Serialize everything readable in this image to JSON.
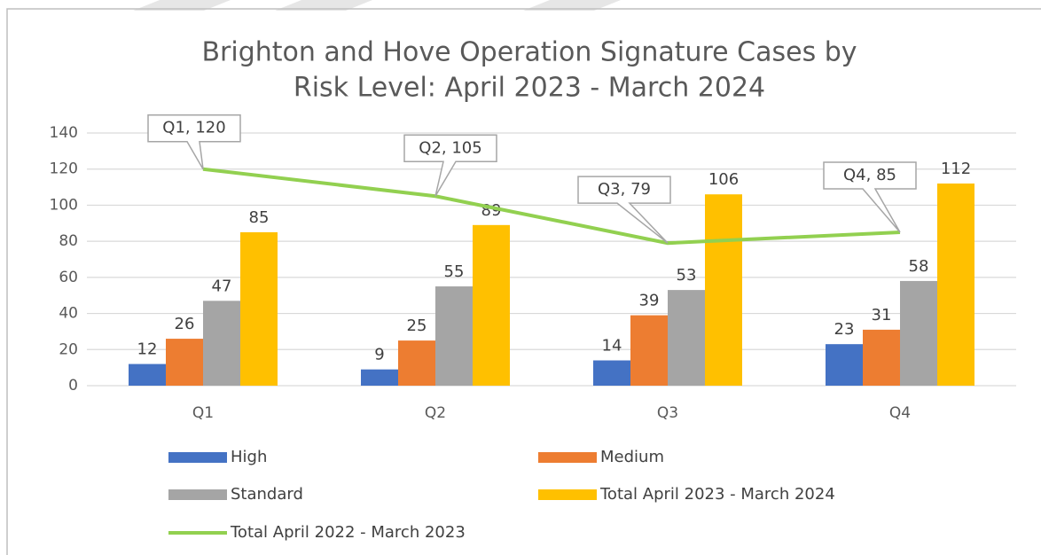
{
  "chart_data": {
    "type": "bar",
    "title": [
      "Brighton and Hove Operation Signature Cases by",
      "Risk Level: April 2023 - March 2024"
    ],
    "categories": [
      "Q1",
      "Q2",
      "Q3",
      "Q4"
    ],
    "series": [
      {
        "name": "High",
        "color": "#4472c4",
        "values": [
          12,
          9,
          14,
          23
        ]
      },
      {
        "name": "Medium",
        "color": "#ed7d31",
        "values": [
          26,
          25,
          39,
          31
        ]
      },
      {
        "name": "Standard",
        "color": "#a5a5a5",
        "values": [
          47,
          55,
          53,
          58
        ]
      },
      {
        "name": "Total April 2023 - March 2024",
        "color": "#ffc000",
        "values": [
          85,
          89,
          106,
          112
        ]
      },
      {
        "name": "Total April 2022 - March 2023",
        "color": "#92d050",
        "type": "line",
        "values": [
          120,
          105,
          79,
          85
        ],
        "value_labels": [
          "Q1, 120",
          "Q2, 105",
          "Q3, 79",
          "Q4, 85"
        ]
      }
    ],
    "ylim": [
      0,
      140
    ],
    "yticks": [
      0,
      20,
      40,
      60,
      80,
      100,
      120,
      140
    ],
    "grid": true,
    "legend": "bottom"
  }
}
